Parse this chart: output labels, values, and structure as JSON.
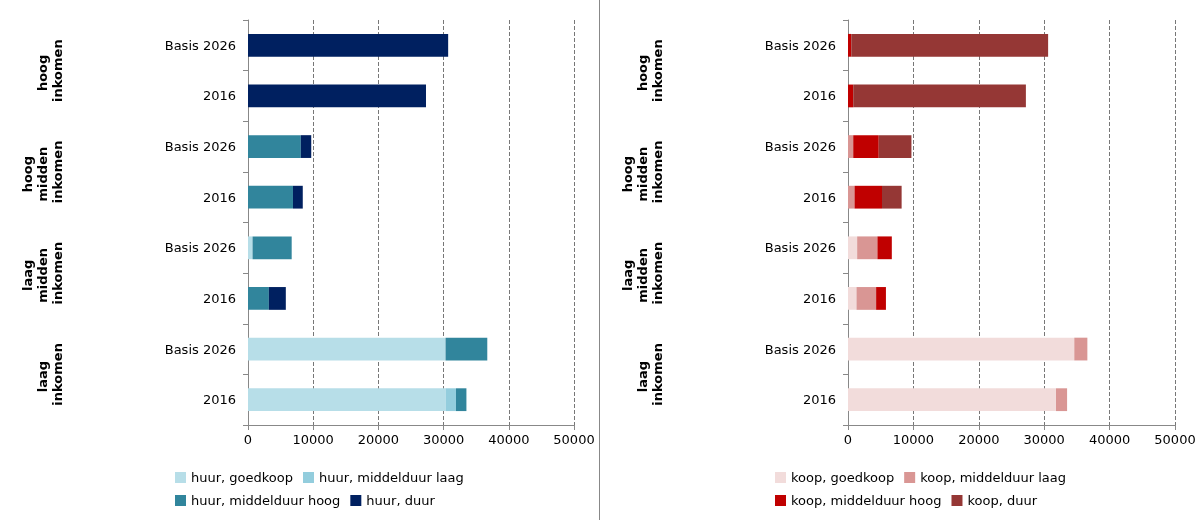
{
  "chart_data": [
    {
      "type": "bar",
      "orientation": "horizontal",
      "stacked": true,
      "categories": [
        "Basis 2026",
        "2016",
        "Basis 2026",
        "2016",
        "Basis 2026",
        "2016",
        "Basis 2026",
        "2016"
      ],
      "annotations": [
        "hoog inkomen",
        "hoog midden inkomen",
        "laag midden inkomen",
        "laag inkomen"
      ],
      "series": [
        {
          "name": "huur, goedkoop",
          "color": "#b7dee8",
          "values": [
            0,
            0,
            0,
            0,
            700,
            0,
            30300,
            30300
          ]
        },
        {
          "name": "huur, middelduur laag",
          "color": "#93cddd",
          "values": [
            0,
            0,
            0,
            0,
            0,
            0,
            0,
            1600
          ]
        },
        {
          "name": "huur, middelduur hoog",
          "color": "#31859c",
          "values": [
            0,
            0,
            8100,
            6900,
            6000,
            3200,
            6400,
            1600
          ]
        },
        {
          "name": "huur, duur",
          "color": "#002060",
          "values": [
            30700,
            27300,
            1600,
            1500,
            0,
            2600,
            0,
            0
          ]
        }
      ],
      "xlim": [
        0,
        50000
      ],
      "xticks": [
        0,
        10000,
        20000,
        30000,
        40000,
        50000
      ],
      "grid": "x",
      "legend": "bottom"
    },
    {
      "type": "bar",
      "orientation": "horizontal",
      "stacked": true,
      "categories": [
        "Basis 2026",
        "2016",
        "Basis 2026",
        "2016",
        "Basis 2026",
        "2016",
        "Basis 2026",
        "2016"
      ],
      "annotations": [
        "hoog inkomen",
        "hoog midden inkomen",
        "laag midden inkomen",
        "laag inkomen"
      ],
      "series": [
        {
          "name": "koop, goedkoop",
          "color": "#f2dcdb",
          "values": [
            0,
            0,
            0,
            0,
            1400,
            1300,
            34600,
            31800
          ]
        },
        {
          "name": "koop, middelduur laag",
          "color": "#d99694",
          "values": [
            0,
            0,
            800,
            1000,
            3100,
            3000,
            2000,
            1700
          ]
        },
        {
          "name": "koop, middelduur hoog",
          "color": "#c00000",
          "values": [
            500,
            800,
            3900,
            4200,
            2200,
            1500,
            0,
            0
          ]
        },
        {
          "name": "koop, duur",
          "color": "#953735",
          "values": [
            30100,
            26400,
            5000,
            3000,
            0,
            0,
            0,
            0
          ]
        }
      ],
      "xlim": [
        0,
        50000
      ],
      "xticks": [
        0,
        10000,
        20000,
        30000,
        40000,
        50000
      ],
      "grid": "x",
      "legend": "bottom"
    }
  ]
}
